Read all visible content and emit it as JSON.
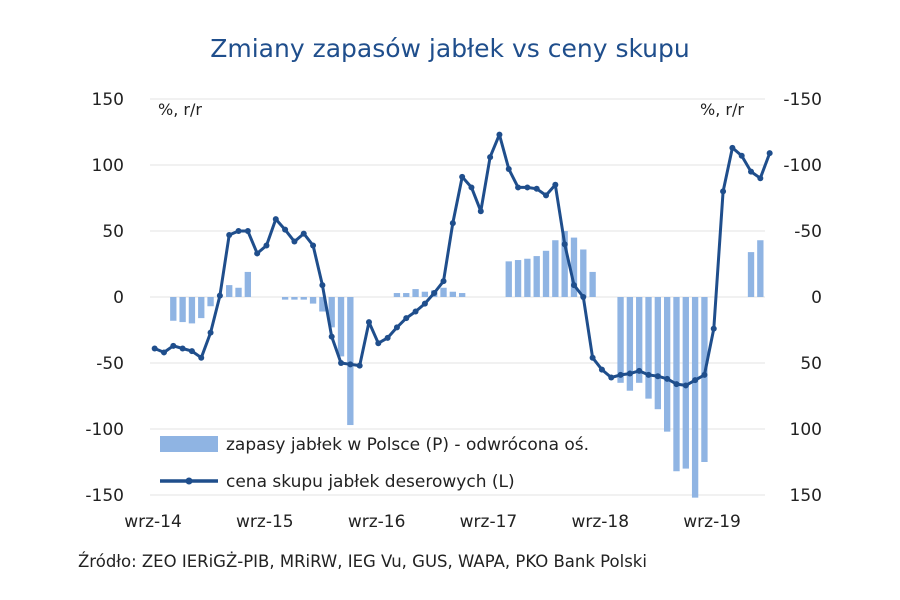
{
  "chart_data": {
    "type": "bar+line",
    "title": "Zmiany zapasów jabłek vs ceny skupu",
    "left_unit": "%, r/r",
    "right_unit": "%, r/r",
    "left_axis": {
      "range": [
        -150,
        150
      ],
      "ticks": [
        "150",
        "100",
        "50",
        "0",
        "-50",
        "-100",
        "-150"
      ]
    },
    "right_axis": {
      "reversed": true,
      "range": [
        -150,
        150
      ],
      "ticks": [
        "-150",
        "-100",
        "-50",
        "0",
        "50",
        "100",
        "150"
      ]
    },
    "x_ticks": [
      "wrz-14",
      "wrz-15",
      "wrz-16",
      "wrz-17",
      "wrz-18",
      "wrz-19"
    ],
    "x_start": "2014-09",
    "x_end": "2020-02",
    "grid": true,
    "legend": {
      "bars": "zapasy jabłek w Polsce (P) - odwrócona oś.",
      "line": "cena skupu jabłek deserowych (L)"
    },
    "bar_color": "#8fb4e3",
    "line_color": "#1f4e8c",
    "bars": [
      {
        "month": "2014-11",
        "value": 18
      },
      {
        "month": "2014-12",
        "value": 19
      },
      {
        "month": "2015-01",
        "value": 20
      },
      {
        "month": "2015-02",
        "value": 16
      },
      {
        "month": "2015-03",
        "value": 7
      },
      {
        "month": "2015-05",
        "value": -9
      },
      {
        "month": "2015-06",
        "value": -7
      },
      {
        "month": "2015-07",
        "value": -19
      },
      {
        "month": "2015-11",
        "value": 2
      },
      {
        "month": "2015-12",
        "value": 2
      },
      {
        "month": "2016-01",
        "value": 2
      },
      {
        "month": "2016-02",
        "value": 5
      },
      {
        "month": "2016-03",
        "value": 11
      },
      {
        "month": "2016-04",
        "value": 23
      },
      {
        "month": "2016-05",
        "value": 45
      },
      {
        "month": "2016-06",
        "value": 97
      },
      {
        "month": "2016-11",
        "value": -3
      },
      {
        "month": "2016-12",
        "value": -3
      },
      {
        "month": "2017-01",
        "value": -6
      },
      {
        "month": "2017-02",
        "value": -4
      },
      {
        "month": "2017-03",
        "value": -5
      },
      {
        "month": "2017-04",
        "value": -7
      },
      {
        "month": "2017-05",
        "value": -4
      },
      {
        "month": "2017-06",
        "value": -3
      },
      {
        "month": "2017-11",
        "value": -27
      },
      {
        "month": "2017-12",
        "value": -28
      },
      {
        "month": "2018-01",
        "value": -29
      },
      {
        "month": "2018-02",
        "value": -31
      },
      {
        "month": "2018-03",
        "value": -35
      },
      {
        "month": "2018-04",
        "value": -43
      },
      {
        "month": "2018-05",
        "value": -50
      },
      {
        "month": "2018-06",
        "value": -45
      },
      {
        "month": "2018-07",
        "value": -36
      },
      {
        "month": "2018-08",
        "value": -19
      },
      {
        "month": "2018-11",
        "value": 65
      },
      {
        "month": "2018-12",
        "value": 71
      },
      {
        "month": "2019-01",
        "value": 65
      },
      {
        "month": "2019-02",
        "value": 77
      },
      {
        "month": "2019-03",
        "value": 85
      },
      {
        "month": "2019-04",
        "value": 102
      },
      {
        "month": "2019-05",
        "value": 132
      },
      {
        "month": "2019-06",
        "value": 130
      },
      {
        "month": "2019-07",
        "value": 152
      },
      {
        "month": "2019-08",
        "value": 125
      },
      {
        "month": "2020-01",
        "value": -34
      },
      {
        "month": "2020-02",
        "value": -43
      }
    ],
    "line": [
      {
        "month": "2014-09",
        "value": -39
      },
      {
        "month": "2014-10",
        "value": -42
      },
      {
        "month": "2014-11",
        "value": -37
      },
      {
        "month": "2014-12",
        "value": -39
      },
      {
        "month": "2015-01",
        "value": -41
      },
      {
        "month": "2015-02",
        "value": -46
      },
      {
        "month": "2015-03",
        "value": -27
      },
      {
        "month": "2015-04",
        "value": 1
      },
      {
        "month": "2015-05",
        "value": 47
      },
      {
        "month": "2015-06",
        "value": 50
      },
      {
        "month": "2015-07",
        "value": 50
      },
      {
        "month": "2015-08",
        "value": 33
      },
      {
        "month": "2015-09",
        "value": 39
      },
      {
        "month": "2015-10",
        "value": 59
      },
      {
        "month": "2015-11",
        "value": 51
      },
      {
        "month": "2015-12",
        "value": 42
      },
      {
        "month": "2016-01",
        "value": 48
      },
      {
        "month": "2016-02",
        "value": 39
      },
      {
        "month": "2016-03",
        "value": 9
      },
      {
        "month": "2016-04",
        "value": -30
      },
      {
        "month": "2016-05",
        "value": -50
      },
      {
        "month": "2016-06",
        "value": -51
      },
      {
        "month": "2016-07",
        "value": -52
      },
      {
        "month": "2016-08",
        "value": -19
      },
      {
        "month": "2016-09",
        "value": -35
      },
      {
        "month": "2016-10",
        "value": -31
      },
      {
        "month": "2016-11",
        "value": -23
      },
      {
        "month": "2016-12",
        "value": -16
      },
      {
        "month": "2017-01",
        "value": -11
      },
      {
        "month": "2017-02",
        "value": -5
      },
      {
        "month": "2017-03",
        "value": 3
      },
      {
        "month": "2017-04",
        "value": 12
      },
      {
        "month": "2017-05",
        "value": 56
      },
      {
        "month": "2017-06",
        "value": 91
      },
      {
        "month": "2017-07",
        "value": 83
      },
      {
        "month": "2017-08",
        "value": 65
      },
      {
        "month": "2017-09",
        "value": 106
      },
      {
        "month": "2017-10",
        "value": 123
      },
      {
        "month": "2017-11",
        "value": 97
      },
      {
        "month": "2017-12",
        "value": 83
      },
      {
        "month": "2018-01",
        "value": 83
      },
      {
        "month": "2018-02",
        "value": 82
      },
      {
        "month": "2018-03",
        "value": 77
      },
      {
        "month": "2018-04",
        "value": 85
      },
      {
        "month": "2018-05",
        "value": 40
      },
      {
        "month": "2018-06",
        "value": 9
      },
      {
        "month": "2018-07",
        "value": 0
      },
      {
        "month": "2018-08",
        "value": -46
      },
      {
        "month": "2018-09",
        "value": -55
      },
      {
        "month": "2018-10",
        "value": -61
      },
      {
        "month": "2018-11",
        "value": -59
      },
      {
        "month": "2018-12",
        "value": -58
      },
      {
        "month": "2019-01",
        "value": -56
      },
      {
        "month": "2019-02",
        "value": -59
      },
      {
        "month": "2019-03",
        "value": -60
      },
      {
        "month": "2019-04",
        "value": -62
      },
      {
        "month": "2019-05",
        "value": -66
      },
      {
        "month": "2019-06",
        "value": -67
      },
      {
        "month": "2019-07",
        "value": -63
      },
      {
        "month": "2019-08",
        "value": -59
      },
      {
        "month": "2019-09",
        "value": -24
      },
      {
        "month": "2019-10",
        "value": 80
      },
      {
        "month": "2019-11",
        "value": 113
      },
      {
        "month": "2019-12",
        "value": 107
      },
      {
        "month": "2020-01",
        "value": 95
      },
      {
        "month": "2020-02",
        "value": 90
      },
      {
        "month": "2020-03",
        "value": 109
      }
    ]
  },
  "source_note": "Źródło: ZEO IERiGŻ-PIB, MRiRW, IEG Vu, GUS, WAPA, PKO Bank Polski"
}
